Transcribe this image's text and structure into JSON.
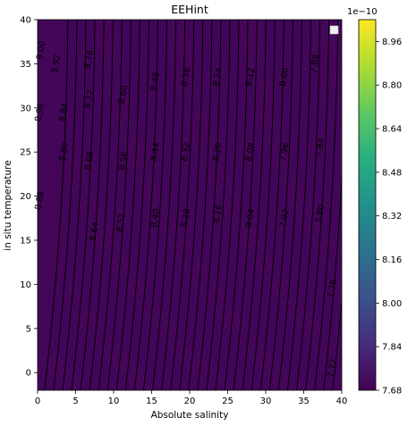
{
  "chart_data": {
    "type": "heatmap",
    "title": "EEHint",
    "xlabel": "Absolute salinity",
    "ylabel": "in situ temperature",
    "xlim": [
      0,
      40
    ],
    "ylim": [
      -2,
      40
    ],
    "xticks": [
      "0",
      "5",
      "10",
      "15",
      "20",
      "25",
      "30",
      "35",
      "40"
    ],
    "yticks": [
      "0",
      "5",
      "10",
      "15",
      "20",
      "25",
      "30",
      "35",
      "40"
    ],
    "colormap": "viridis",
    "colorbar": {
      "multiplier": "1e−10",
      "range": [
        7.68,
        9.04
      ],
      "ticks": [
        "7.68",
        "7.84",
        "8.00",
        "8.16",
        "8.32",
        "8.48",
        "8.64",
        "8.80",
        "8.96"
      ]
    },
    "contour_labels": [
      {
        "text": "9.00",
        "S": 0.5,
        "T": 36.5
      },
      {
        "text": "8.92",
        "S": 2.5,
        "T": 35.0
      },
      {
        "text": "8.84",
        "S": 3.5,
        "T": 29.5
      },
      {
        "text": "8.80",
        "S": 3.5,
        "T": 25.0
      },
      {
        "text": "8.96",
        "S": 0.3,
        "T": 29.5
      },
      {
        "text": "8.88",
        "S": 0.3,
        "T": 19.5
      },
      {
        "text": "8.76",
        "S": 6.8,
        "T": 35.5
      },
      {
        "text": "8.72",
        "S": 6.8,
        "T": 31.0
      },
      {
        "text": "8.68",
        "S": 6.8,
        "T": 24.0
      },
      {
        "text": "8.64",
        "S": 7.5,
        "T": 16.0
      },
      {
        "text": "8.60",
        "S": 11.3,
        "T": 31.5
      },
      {
        "text": "8.56",
        "S": 11.3,
        "T": 24.0
      },
      {
        "text": "8.52",
        "S": 11.0,
        "T": 17.0
      },
      {
        "text": "8.48",
        "S": 15.5,
        "T": 33.0
      },
      {
        "text": "8.44",
        "S": 15.5,
        "T": 25.0
      },
      {
        "text": "8.40",
        "S": 15.5,
        "T": 17.5
      },
      {
        "text": "8.36",
        "S": 19.5,
        "T": 33.5
      },
      {
        "text": "8.32",
        "S": 19.5,
        "T": 25.0
      },
      {
        "text": "8.28",
        "S": 19.5,
        "T": 17.5
      },
      {
        "text": "8.24",
        "S": 23.7,
        "T": 33.5
      },
      {
        "text": "8.20",
        "S": 23.7,
        "T": 25.0
      },
      {
        "text": "8.16",
        "S": 23.7,
        "T": 18.0
      },
      {
        "text": "8.12",
        "S": 28.0,
        "T": 33.5
      },
      {
        "text": "8.08",
        "S": 28.0,
        "T": 25.0
      },
      {
        "text": "8.04",
        "S": 28.0,
        "T": 17.5
      },
      {
        "text": "8.00",
        "S": 32.5,
        "T": 33.5
      },
      {
        "text": "7.96",
        "S": 32.5,
        "T": 25.0
      },
      {
        "text": "7.92",
        "S": 32.5,
        "T": 17.5
      },
      {
        "text": "7.88",
        "S": 36.5,
        "T": 35.0
      },
      {
        "text": "7.84",
        "S": 37.2,
        "T": 25.5
      },
      {
        "text": "7.80",
        "S": 37.2,
        "T": 18.0
      },
      {
        "text": "7.76",
        "S": 38.8,
        "T": 9.5
      },
      {
        "text": "7.72",
        "S": 38.8,
        "T": 0.5
      }
    ]
  }
}
